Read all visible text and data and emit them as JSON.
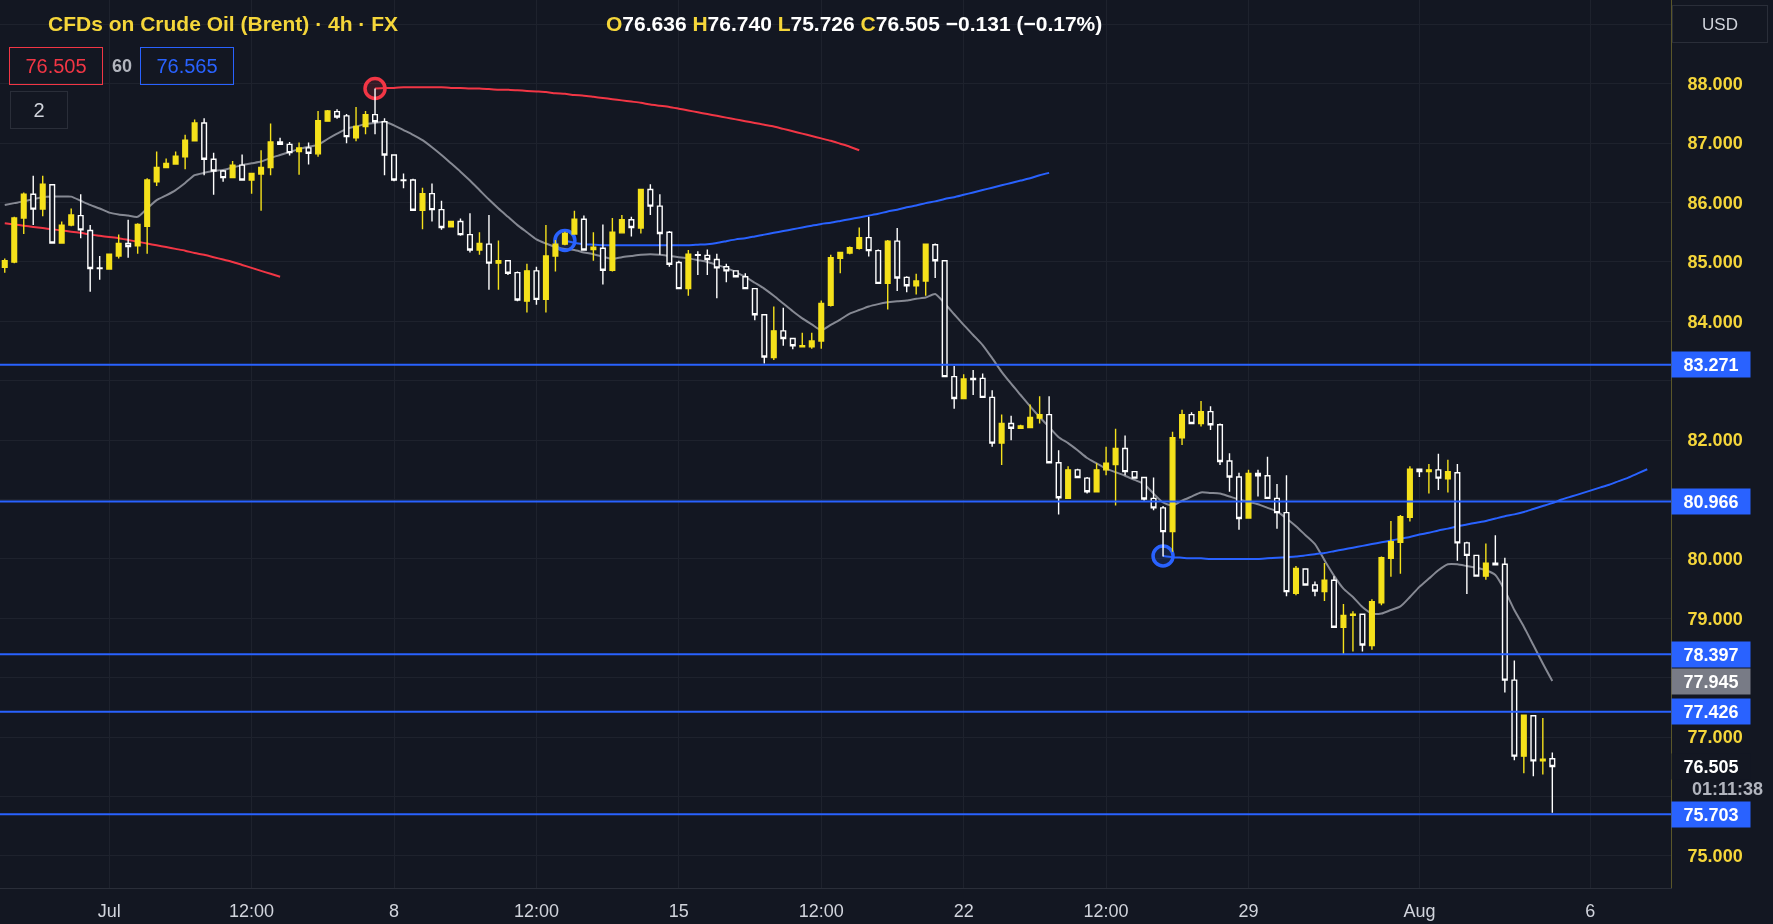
{
  "chart_data": {
    "type": "candlestick",
    "title": "CFDs on Crude Oil (Brent) · 4h · FX",
    "categories": [
      null,
      null,
      null,
      null,
      null,
      null,
      null,
      null,
      null,
      null,
      null,
      "Jul",
      null,
      null,
      null,
      null,
      null,
      null,
      null,
      null,
      null,
      null,
      null,
      null,
      null,
      null,
      "12:00",
      null,
      null,
      null,
      null,
      null,
      null,
      null,
      null,
      null,
      null,
      null,
      null,
      null,
      null,
      "8",
      null,
      null,
      null,
      null,
      null,
      null,
      null,
      null,
      null,
      null,
      null,
      null,
      null,
      null,
      "12:00",
      null,
      null,
      null,
      null,
      null,
      null,
      null,
      null,
      null,
      null,
      null,
      null,
      null,
      null,
      "15",
      null,
      null,
      null,
      null,
      null,
      null,
      null,
      null,
      null,
      null,
      null,
      null,
      null,
      null,
      "12:00",
      null,
      null,
      null,
      null,
      null,
      null,
      null,
      null,
      null,
      null,
      null,
      null,
      null,
      null,
      "22",
      null,
      null,
      null,
      null,
      null,
      null,
      null,
      null,
      null,
      null,
      null,
      null,
      null,
      null,
      "12:00",
      null,
      null,
      null,
      null,
      null,
      null,
      null,
      null,
      null,
      null,
      null,
      null,
      null,
      null,
      "29",
      null,
      null,
      null,
      null,
      null,
      null,
      null,
      null,
      null,
      null,
      null,
      null,
      null,
      null,
      null,
      null,
      null,
      "Aug",
      null,
      null,
      null,
      null,
      null,
      null,
      null,
      null,
      null,
      null,
      null,
      null,
      null,
      null,
      null,
      null,
      null,
      "6",
      null,
      null,
      null,
      null,
      null,
      null,
      null,
      null
    ],
    "ohlc": [
      [
        84.91,
        85.06,
        84.82,
        85.02
      ],
      [
        85.0,
        85.76,
        84.98,
        85.74
      ],
      [
        85.74,
        86.17,
        85.47,
        86.14
      ],
      [
        86.14,
        86.45,
        85.62,
        85.89
      ],
      [
        85.89,
        86.45,
        85.77,
        86.31
      ],
      [
        86.3,
        86.31,
        85.31,
        85.32
      ],
      [
        85.32,
        85.68,
        85.31,
        85.62
      ],
      [
        85.62,
        85.9,
        85.6,
        85.79
      ],
      [
        85.78,
        86.14,
        85.4,
        85.54
      ],
      [
        85.53,
        85.62,
        84.5,
        84.89
      ],
      [
        84.9,
        85.1,
        84.7,
        84.89
      ],
      [
        84.88,
        85.14,
        84.88,
        85.13
      ],
      [
        85.1,
        85.46,
        85.06,
        85.31
      ],
      [
        85.31,
        85.71,
        85.07,
        85.26
      ],
      [
        85.27,
        85.65,
        85.14,
        85.63
      ],
      [
        85.6,
        86.41,
        85.14,
        86.38
      ],
      [
        86.35,
        86.86,
        86.28,
        86.59
      ],
      [
        86.59,
        86.74,
        86.58,
        86.66
      ],
      [
        86.65,
        86.86,
        86.65,
        86.78
      ],
      [
        86.77,
        87.14,
        86.56,
        87.05
      ],
      [
        87.04,
        87.4,
        87.04,
        87.34
      ],
      [
        87.34,
        87.42,
        86.46,
        86.73
      ],
      [
        86.73,
        86.84,
        86.13,
        86.53
      ],
      [
        86.53,
        86.55,
        86.35,
        86.42
      ],
      [
        86.42,
        86.7,
        86.41,
        86.63
      ],
      [
        86.63,
        86.81,
        86.37,
        86.38
      ],
      [
        86.38,
        86.49,
        86.15,
        86.49
      ],
      [
        86.48,
        86.88,
        85.86,
        86.59
      ],
      [
        86.59,
        87.33,
        86.46,
        87.02
      ],
      [
        87.02,
        87.09,
        86.97,
        86.98
      ],
      [
        86.98,
        87.02,
        86.79,
        86.84
      ],
      [
        86.86,
        87.01,
        86.47,
        86.92
      ],
      [
        86.92,
        87.01,
        86.64,
        86.83
      ],
      [
        86.82,
        87.54,
        86.77,
        87.38
      ],
      [
        87.37,
        87.56,
        87.36,
        87.54
      ],
      [
        87.53,
        87.57,
        87.41,
        87.44
      ],
      [
        87.46,
        87.49,
        87.0,
        87.11
      ],
      [
        87.09,
        87.61,
        87.03,
        87.28
      ],
      [
        87.28,
        87.54,
        87.15,
        87.48
      ],
      [
        87.48,
        87.92,
        87.15,
        87.36
      ],
      [
        87.36,
        87.42,
        86.46,
        86.8
      ],
      [
        86.8,
        86.81,
        86.36,
        86.38
      ],
      [
        86.38,
        86.49,
        86.24,
        86.37
      ],
      [
        86.38,
        86.4,
        85.86,
        85.87
      ],
      [
        85.87,
        86.25,
        85.55,
        86.15
      ],
      [
        86.15,
        86.32,
        85.68,
        85.88
      ],
      [
        85.88,
        86.03,
        85.54,
        85.58
      ],
      [
        85.59,
        85.69,
        85.59,
        85.68
      ],
      [
        85.68,
        85.73,
        85.44,
        85.46
      ],
      [
        85.46,
        85.82,
        85.16,
        85.2
      ],
      [
        85.2,
        85.5,
        85.12,
        85.31
      ],
      [
        85.3,
        85.79,
        84.53,
        84.98
      ],
      [
        84.98,
        85.36,
        84.53,
        85.02
      ],
      [
        85.02,
        85.03,
        84.78,
        84.81
      ],
      [
        84.82,
        84.84,
        84.34,
        84.36
      ],
      [
        84.34,
        84.97,
        84.15,
        84.85
      ],
      [
        84.85,
        84.92,
        84.28,
        84.37
      ],
      [
        84.37,
        85.62,
        84.15,
        85.1
      ],
      [
        85.1,
        85.37,
        84.84,
        85.3
      ],
      [
        85.3,
        85.51,
        85.28,
        85.48
      ],
      [
        85.47,
        85.86,
        85.46,
        85.72
      ],
      [
        85.72,
        85.78,
        85.19,
        85.2
      ],
      [
        85.21,
        85.5,
        85.02,
        85.25
      ],
      [
        85.23,
        85.63,
        84.62,
        84.86
      ],
      [
        84.86,
        85.74,
        84.84,
        85.5
      ],
      [
        85.49,
        85.79,
        85.48,
        85.71
      ],
      [
        85.71,
        85.76,
        85.43,
        85.58
      ],
      [
        85.57,
        86.22,
        85.48,
        86.22
      ],
      [
        86.22,
        86.31,
        85.79,
        85.94
      ],
      [
        85.94,
        86.14,
        85.12,
        85.48
      ],
      [
        85.5,
        85.52,
        84.92,
        84.96
      ],
      [
        84.99,
        85.02,
        84.54,
        84.55
      ],
      [
        84.55,
        85.2,
        84.43,
        85.13
      ],
      [
        85.12,
        85.18,
        84.78,
        85.11
      ],
      [
        85.11,
        85.21,
        84.78,
        85.04
      ],
      [
        85.04,
        85.14,
        84.39,
        84.9
      ],
      [
        84.92,
        84.97,
        84.66,
        84.85
      ],
      [
        84.85,
        84.86,
        84.74,
        84.75
      ],
      [
        84.75,
        84.81,
        84.54,
        84.55
      ],
      [
        84.55,
        84.56,
        84.02,
        84.11
      ],
      [
        84.11,
        84.11,
        83.29,
        83.4
      ],
      [
        83.39,
        84.25,
        83.35,
        83.84
      ],
      [
        83.84,
        84.23,
        83.59,
        83.71
      ],
      [
        83.71,
        83.72,
        83.53,
        83.59
      ],
      [
        83.57,
        83.81,
        83.56,
        83.59
      ],
      [
        83.57,
        83.81,
        83.54,
        83.67
      ],
      [
        83.67,
        84.35,
        83.54,
        84.3
      ],
      [
        84.27,
        85.12,
        84.25,
        85.07
      ],
      [
        85.06,
        85.17,
        84.81,
        85.16
      ],
      [
        85.15,
        85.26,
        85.13,
        85.24
      ],
      [
        85.23,
        85.58,
        85.21,
        85.41
      ],
      [
        85.41,
        85.76,
        85.09,
        85.19
      ],
      [
        85.19,
        85.21,
        84.63,
        84.64
      ],
      [
        84.64,
        85.37,
        84.2,
        85.35
      ],
      [
        85.35,
        85.57,
        84.51,
        84.73
      ],
      [
        84.74,
        84.76,
        84.49,
        84.6
      ],
      [
        84.6,
        84.8,
        84.45,
        84.68
      ],
      [
        84.68,
        85.31,
        84.43,
        85.3
      ],
      [
        85.29,
        85.31,
        84.73,
        85.02
      ],
      [
        85.02,
        85.03,
        83.06,
        83.07
      ],
      [
        83.07,
        83.25,
        82.53,
        82.7
      ],
      [
        82.7,
        83.11,
        82.69,
        83.03
      ],
      [
        83.04,
        83.18,
        82.76,
        83.02
      ],
      [
        83.04,
        83.12,
        82.71,
        82.72
      ],
      [
        82.72,
        82.84,
        81.89,
        81.95
      ],
      [
        81.95,
        82.43,
        81.58,
        82.28
      ],
      [
        82.28,
        82.41,
        82.0,
        82.2
      ],
      [
        82.2,
        82.26,
        82.19,
        82.24
      ],
      [
        82.21,
        82.6,
        82.21,
        82.38
      ],
      [
        82.37,
        82.74,
        82.28,
        82.43
      ],
      [
        82.43,
        82.74,
        81.61,
        81.62
      ],
      [
        81.62,
        81.83,
        80.75,
        81.03
      ],
      [
        81.02,
        81.56,
        81.01,
        81.5
      ],
      [
        81.5,
        81.52,
        81.36,
        81.37
      ],
      [
        81.36,
        81.38,
        81.1,
        81.13
      ],
      [
        81.13,
        81.61,
        81.12,
        81.5
      ],
      [
        81.5,
        81.89,
        81.41,
        81.61
      ],
      [
        81.59,
        82.19,
        80.9,
        81.86
      ],
      [
        81.86,
        82.08,
        81.41,
        81.47
      ],
      [
        81.47,
        81.48,
        81.36,
        81.36
      ],
      [
        81.37,
        81.37,
        80.98,
        81.01
      ],
      [
        81.02,
        81.37,
        80.82,
        80.86
      ],
      [
        80.86,
        80.89,
        80.04,
        80.46
      ],
      [
        80.46,
        82.14,
        80.12,
        82.04
      ],
      [
        82.04,
        82.51,
        81.92,
        82.43
      ],
      [
        82.43,
        82.47,
        82.27,
        82.28
      ],
      [
        82.28,
        82.66,
        82.23,
        82.48
      ],
      [
        82.48,
        82.57,
        82.17,
        82.26
      ],
      [
        82.26,
        82.28,
        81.58,
        81.64
      ],
      [
        81.65,
        81.78,
        81.13,
        81.38
      ],
      [
        81.38,
        81.45,
        80.49,
        80.68
      ],
      [
        80.69,
        81.5,
        80.68,
        81.44
      ],
      [
        81.44,
        81.5,
        81.05,
        81.4
      ],
      [
        81.4,
        81.72,
        81.01,
        81.02
      ],
      [
        81.02,
        81.26,
        80.51,
        80.78
      ],
      [
        80.78,
        81.41,
        79.37,
        79.45
      ],
      [
        79.42,
        79.88,
        79.39,
        79.84
      ],
      [
        79.83,
        79.84,
        79.55,
        79.56
      ],
      [
        79.56,
        79.62,
        79.37,
        79.46
      ],
      [
        79.45,
        79.93,
        79.29,
        79.64
      ],
      [
        79.64,
        79.71,
        78.84,
        78.85
      ],
      [
        78.85,
        79.24,
        78.4,
        79.05
      ],
      [
        79.05,
        79.12,
        78.44,
        79.07
      ],
      [
        79.07,
        79.08,
        78.44,
        78.55
      ],
      [
        78.54,
        79.32,
        78.47,
        79.28
      ],
      [
        79.26,
        80.04,
        79.22,
        80.02
      ],
      [
        80.01,
        80.64,
        79.7,
        80.29
      ],
      [
        80.28,
        80.74,
        79.75,
        80.71
      ],
      [
        80.7,
        81.56,
        80.63,
        81.51
      ],
      [
        81.51,
        81.52,
        81.38,
        81.47
      ],
      [
        81.47,
        81.6,
        81.1,
        81.5
      ],
      [
        81.5,
        81.77,
        81.16,
        81.36
      ],
      [
        81.35,
        81.67,
        81.12,
        81.47
      ],
      [
        81.45,
        81.6,
        79.97,
        80.27
      ],
      [
        80.27,
        80.29,
        79.41,
        80.06
      ],
      [
        80.06,
        80.07,
        79.7,
        79.71
      ],
      [
        79.71,
        80.26,
        79.65,
        79.93
      ],
      [
        79.93,
        80.4,
        79.89,
        79.9
      ],
      [
        79.91,
        80.02,
        77.75,
        77.96
      ],
      [
        77.96,
        78.29,
        76.61,
        76.68
      ],
      [
        76.68,
        77.37,
        76.39,
        77.37
      ],
      [
        77.36,
        77.37,
        76.34,
        76.6
      ],
      [
        76.6,
        77.32,
        76.37,
        76.63
      ],
      [
        76.636,
        76.74,
        75.726,
        76.505
      ],
      null,
      null,
      null,
      null,
      null,
      null,
      null,
      null,
      null,
      null,
      null,
      null
    ],
    "colors": [
      "#f5e11b",
      "#f5e11b",
      "#f5e11b",
      "#ffffff",
      "#f5e11b",
      "#ffffff",
      "#f5e11b",
      "#f5e11b",
      "#ffffff",
      "#ffffff",
      "#ffffff",
      "#f5e11b",
      "#f5e11b",
      "#ffffff",
      "#f5e11b",
      "#f5e11b",
      "#f5e11b",
      "#f5e11b",
      "#f5e11b",
      "#f5e11b",
      "#f5e11b",
      "#ffffff",
      "#ffffff",
      "#ffffff",
      "#f5e11b",
      "#ffffff",
      "#f5e11b",
      "#f5e11b",
      "#f5e11b",
      "#ffffff",
      "#ffffff",
      "#f5e11b",
      "#ffffff",
      "#f5e11b",
      "#f5e11b",
      "#ffffff",
      "#ffffff",
      "#f5e11b",
      "#f5e11b",
      "#ffffff",
      "#ffffff",
      "#ffffff",
      "#ffffff",
      "#ffffff",
      "#f5e11b",
      "#ffffff",
      "#ffffff",
      "#f5e11b",
      "#ffffff",
      "#ffffff",
      "#f5e11b",
      "#ffffff",
      "#f5e11b",
      "#ffffff",
      "#ffffff",
      "#f5e11b",
      "#ffffff",
      "#f5e11b",
      "#f5e11b",
      "#f5e11b",
      "#f5e11b",
      "#ffffff",
      "#f5e11b",
      "#ffffff",
      "#f5e11b",
      "#f5e11b",
      "#ffffff",
      "#f5e11b",
      "#ffffff",
      "#ffffff",
      "#ffffff",
      "#ffffff",
      "#f5e11b",
      "#ffffff",
      "#ffffff",
      "#ffffff",
      "#ffffff",
      "#ffffff",
      "#ffffff",
      "#ffffff",
      "#ffffff",
      "#f5e11b",
      "#ffffff",
      "#ffffff",
      "#f5e11b",
      "#f5e11b",
      "#f5e11b",
      "#f5e11b",
      "#f5e11b",
      "#f5e11b",
      "#f5e11b",
      "#ffffff",
      "#ffffff",
      "#f5e11b",
      "#ffffff",
      "#ffffff",
      "#f5e11b",
      "#f5e11b",
      "#ffffff",
      "#ffffff",
      "#ffffff",
      "#f5e11b",
      "#ffffff",
      "#ffffff",
      "#ffffff",
      "#f5e11b",
      "#ffffff",
      "#f5e11b",
      "#f5e11b",
      "#f5e11b",
      "#ffffff",
      "#ffffff",
      "#f5e11b",
      "#ffffff",
      "#ffffff",
      "#f5e11b",
      "#f5e11b",
      "#f5e11b",
      "#ffffff",
      "#ffffff",
      "#ffffff",
      "#ffffff",
      "#ffffff",
      "#f5e11b",
      "#f5e11b",
      "#ffffff",
      "#f5e11b",
      "#ffffff",
      "#ffffff",
      "#ffffff",
      "#ffffff",
      "#f5e11b",
      "#ffffff",
      "#ffffff",
      "#ffffff",
      "#ffffff",
      "#f5e11b",
      "#ffffff",
      "#ffffff",
      "#f5e11b",
      "#ffffff",
      "#f5e11b",
      "#f5e11b",
      "#ffffff",
      "#f5e11b",
      "#f5e11b",
      "#f5e11b",
      "#f5e11b",
      "#f5e11b",
      "#ffffff",
      "#f5e11b",
      "#ffffff",
      "#f5e11b",
      "#ffffff",
      "#ffffff",
      "#ffffff",
      "#f5e11b",
      "#ffffff",
      "#ffffff",
      "#ffffff",
      "#f5e11b",
      "#ffffff",
      "#f5e11b",
      "#ffffff",
      null,
      null,
      null,
      null,
      null,
      null,
      null,
      null,
      null,
      null,
      null,
      null
    ],
    "value_labels": [
      null,
      null,
      null,
      null,
      null,
      null,
      null,
      null,
      null,
      null,
      null,
      null,
      null,
      null,
      null,
      null,
      null,
      null,
      null,
      null,
      null,
      null,
      null,
      null,
      null,
      null,
      null,
      null,
      null,
      null,
      null,
      null,
      null,
      null,
      null,
      null,
      null,
      null,
      null,
      null,
      null,
      null,
      null,
      null,
      null,
      null,
      null,
      null,
      null,
      null,
      null,
      null,
      null,
      null,
      null,
      null,
      null,
      null,
      null,
      null,
      null,
      null,
      null,
      null,
      null,
      null,
      null,
      null,
      null,
      null,
      null,
      null,
      null,
      null,
      null,
      null,
      null,
      null,
      null,
      null,
      null,
      null,
      null,
      null,
      null,
      null,
      null,
      null,
      null,
      null,
      null,
      null,
      null,
      null,
      null,
      null,
      null,
      null,
      null,
      null,
      null,
      null,
      null,
      null,
      null,
      null,
      null,
      null,
      null,
      null,
      null,
      null,
      null,
      null,
      null,
      null,
      null,
      null,
      null,
      null,
      null,
      null,
      null,
      null,
      null,
      null,
      null,
      null,
      null,
      null,
      null,
      null,
      null,
      null,
      null,
      null,
      null,
      null,
      null,
      null,
      null,
      null,
      null,
      null,
      null,
      null,
      null,
      null,
      null,
      null,
      null,
      null,
      null,
      null,
      null,
      null,
      null,
      null,
      null,
      null,
      null,
      null,
      null,
      "76.505",
      null,
      null,
      null,
      null,
      null,
      null,
      null,
      null,
      null,
      null,
      null,
      null
    ],
    "series": [
      {
        "type": "line",
        "color": "#868993",
        "values": [
          85.96,
          85.99,
          86.02,
          86.06,
          86.09,
          86.1,
          86.1,
          86.1,
          86.03,
          85.96,
          85.9,
          85.83,
          85.8,
          85.78,
          85.76,
          85.9,
          86.04,
          86.12,
          86.21,
          86.33,
          86.46,
          86.5,
          86.53,
          86.55,
          86.59,
          86.63,
          86.66,
          86.69,
          86.75,
          86.8,
          86.85,
          86.9,
          86.94,
          86.97,
          87.07,
          87.16,
          87.24,
          87.28,
          87.32,
          87.34,
          87.36,
          87.3,
          87.22,
          87.14,
          87.05,
          86.93,
          86.8,
          86.66,
          86.52,
          86.37,
          86.21,
          86.05,
          85.9,
          85.76,
          85.62,
          85.5,
          85.38,
          85.31,
          85.25,
          85.22,
          85.2,
          85.16,
          85.13,
          85.09,
          85.05,
          85.08,
          85.1,
          85.12,
          85.13,
          85.12,
          85.1,
          85.08,
          85.06,
          85.03,
          85.0,
          84.95,
          84.9,
          84.83,
          84.75,
          84.65,
          84.55,
          84.43,
          84.3,
          84.17,
          84.05,
          83.95,
          83.85,
          83.94,
          84.03,
          84.13,
          84.19,
          84.25,
          84.29,
          84.32,
          84.34,
          84.35,
          84.38,
          84.4,
          84.46,
          84.3,
          84.12,
          83.94,
          83.77,
          83.6,
          83.38,
          83.15,
          82.95,
          82.76,
          82.57,
          82.39,
          82.22,
          82.05,
          81.95,
          81.83,
          81.7,
          81.61,
          81.52,
          81.46,
          81.4,
          81.33,
          81.26,
          81.1,
          80.95,
          80.9,
          80.98,
          81.05,
          81.12,
          81.11,
          81.1,
          81.05,
          81.0,
          80.96,
          80.92,
          80.86,
          80.8,
          80.68,
          80.55,
          80.4,
          80.25,
          79.98,
          79.72,
          79.5,
          79.36,
          79.19,
          79.08,
          79.08,
          79.14,
          79.2,
          79.36,
          79.53,
          79.67,
          79.81,
          79.91,
          79.91,
          79.88,
          79.85,
          79.81,
          79.73,
          79.47,
          79.14,
          78.86,
          78.55,
          78.24,
          77.945,
          null,
          null,
          null,
          null,
          null,
          null,
          null,
          null,
          null,
          null,
          null,
          null
        ]
      },
      {
        "type": "line",
        "color": "#f23645",
        "values": [
          85.65,
          85.63,
          85.61,
          85.59,
          85.57,
          85.55,
          85.53,
          85.51,
          85.49,
          85.46,
          85.44,
          85.42,
          85.4,
          85.37,
          85.34,
          85.31,
          85.28,
          85.25,
          85.22,
          85.19,
          85.15,
          85.12,
          85.08,
          85.04,
          85.0,
          84.95,
          84.9,
          84.85,
          84.8,
          84.75,
          null,
          null,
          null,
          null,
          null,
          null,
          null,
          null,
          null,
          87.92,
          87.93,
          87.93,
          87.94,
          87.94,
          87.94,
          87.94,
          87.94,
          87.93,
          87.93,
          87.92,
          87.92,
          87.91,
          87.9,
          87.9,
          87.89,
          87.88,
          87.87,
          87.86,
          87.84,
          87.83,
          87.81,
          87.8,
          87.78,
          87.76,
          87.74,
          87.72,
          87.7,
          87.68,
          87.65,
          87.63,
          87.61,
          87.58,
          87.55,
          87.52,
          87.49,
          87.46,
          87.43,
          87.4,
          87.37,
          87.34,
          87.31,
          87.28,
          87.24,
          87.2,
          87.16,
          87.12,
          87.08,
          87.04,
          86.99,
          86.94,
          86.88,
          null,
          null,
          null,
          null,
          null,
          null,
          null,
          null,
          null,
          null,
          null,
          null,
          null,
          null,
          null,
          null,
          null,
          null,
          null,
          null,
          null,
          null,
          null,
          null,
          null,
          null,
          null,
          null,
          null,
          null,
          null,
          null,
          null,
          null,
          null,
          null,
          null,
          null,
          null,
          null,
          null,
          null,
          null,
          null,
          null,
          null,
          null,
          null,
          null,
          null,
          null,
          null,
          null,
          null,
          null,
          null,
          null,
          null,
          null,
          null,
          null,
          null,
          null,
          null,
          null,
          null,
          null,
          null,
          null,
          null,
          null,
          null,
          null,
          null,
          null,
          null,
          null,
          null,
          null,
          null,
          null,
          null,
          null,
          null,
          null
        ]
      },
      {
        "type": "line",
        "color": "#2962ff",
        "values": [
          null,
          null,
          null,
          null,
          null,
          null,
          null,
          null,
          null,
          null,
          null,
          null,
          null,
          null,
          null,
          null,
          null,
          null,
          null,
          null,
          null,
          null,
          null,
          null,
          null,
          null,
          null,
          null,
          null,
          null,
          null,
          null,
          null,
          null,
          null,
          null,
          null,
          null,
          null,
          null,
          null,
          null,
          null,
          null,
          null,
          null,
          null,
          null,
          null,
          null,
          null,
          null,
          null,
          null,
          null,
          null,
          null,
          null,
          null,
          85.36,
          85.32,
          85.3,
          85.29,
          85.28,
          85.28,
          85.28,
          85.28,
          85.28,
          85.28,
          85.28,
          85.28,
          85.28,
          85.28,
          85.29,
          85.3,
          85.32,
          85.35,
          85.38,
          85.4,
          85.43,
          85.46,
          85.49,
          85.52,
          85.55,
          85.58,
          85.61,
          85.64,
          85.66,
          85.69,
          85.72,
          85.75,
          85.78,
          85.81,
          85.85,
          85.88,
          85.92,
          85.95,
          85.99,
          86.02,
          86.06,
          86.09,
          86.13,
          86.17,
          86.21,
          86.25,
          86.29,
          86.33,
          86.37,
          86.41,
          86.46,
          86.5,
          null,
          null,
          null,
          null,
          null,
          null,
          null,
          null,
          null,
          null,
          null,
          80.05,
          80.03,
          80.02,
          80.01,
          80.01,
          80.0,
          80.0,
          80.0,
          80.0,
          80.0,
          80.0,
          80.01,
          80.02,
          80.03,
          80.04,
          80.06,
          80.08,
          80.1,
          80.13,
          80.16,
          80.19,
          80.22,
          80.25,
          80.28,
          80.31,
          80.34,
          80.37,
          80.41,
          80.44,
          80.48,
          80.51,
          80.55,
          80.58,
          80.61,
          80.64,
          80.68,
          80.72,
          80.75,
          80.79,
          80.84,
          80.89,
          80.94,
          81.0,
          81.05,
          81.1,
          81.15,
          81.2,
          81.25,
          81.31,
          81.37,
          81.44,
          81.51,
          null,
          null
        ]
      },
      {
        "type": "scatter",
        "marker": "circle",
        "color": "#f23645",
        "values": [
          null,
          null,
          null,
          null,
          null,
          null,
          null,
          null,
          null,
          null,
          null,
          null,
          null,
          null,
          null,
          null,
          null,
          null,
          null,
          null,
          null,
          null,
          null,
          null,
          null,
          null,
          null,
          null,
          null,
          null,
          null,
          null,
          null,
          null,
          null,
          null,
          null,
          null,
          null,
          87.92,
          null,
          null,
          null,
          null,
          null,
          null,
          null,
          null,
          null,
          null,
          null,
          null,
          null,
          null,
          null,
          null,
          null,
          null,
          null,
          null,
          null,
          null,
          null,
          null,
          null,
          null,
          null,
          null,
          null,
          null,
          null,
          null,
          null,
          null,
          null,
          null,
          null,
          null,
          null,
          null,
          null,
          null,
          null,
          null,
          null,
          null,
          null,
          null,
          null,
          null,
          null,
          null,
          null,
          null,
          null,
          null,
          null,
          null,
          null,
          null,
          null,
          null,
          null,
          null,
          null,
          null,
          null,
          null,
          null,
          null,
          null,
          null,
          null,
          null,
          null,
          null,
          null,
          null,
          null,
          null,
          null,
          null,
          null,
          null,
          null,
          null,
          null,
          null,
          null,
          null,
          null,
          null,
          null,
          null,
          null,
          null,
          null,
          null,
          null,
          null,
          null,
          null,
          null,
          null,
          null,
          null,
          null,
          null,
          null,
          null,
          null,
          null,
          null,
          null,
          null,
          null,
          null,
          null,
          null,
          null,
          null,
          null,
          null,
          null,
          null,
          null,
          null,
          null,
          null,
          null,
          null,
          null,
          null,
          null,
          null,
          null
        ]
      },
      {
        "type": "scatter",
        "marker": "circle",
        "color": "#2962ff",
        "values": [
          null,
          null,
          null,
          null,
          null,
          null,
          null,
          null,
          null,
          null,
          null,
          null,
          null,
          null,
          null,
          null,
          null,
          null,
          null,
          null,
          null,
          null,
          null,
          null,
          null,
          null,
          null,
          null,
          null,
          null,
          null,
          null,
          null,
          null,
          null,
          null,
          null,
          null,
          null,
          null,
          null,
          null,
          null,
          null,
          null,
          null,
          null,
          null,
          null,
          null,
          null,
          null,
          null,
          null,
          null,
          null,
          null,
          null,
          null,
          85.36,
          null,
          null,
          null,
          null,
          null,
          null,
          null,
          null,
          null,
          null,
          null,
          null,
          null,
          null,
          null,
          null,
          null,
          null,
          null,
          null,
          null,
          null,
          null,
          null,
          null,
          null,
          null,
          null,
          null,
          null,
          null,
          null,
          null,
          null,
          null,
          null,
          null,
          null,
          null,
          null,
          null,
          null,
          null,
          null,
          null,
          null,
          null,
          null,
          null,
          null,
          null,
          null,
          null,
          null,
          null,
          null,
          null,
          null,
          null,
          null,
          null,
          null,
          80.05,
          null,
          null,
          null,
          null,
          null,
          null,
          null,
          null,
          null,
          null,
          null,
          null,
          null,
          null,
          null,
          null,
          null,
          null,
          null,
          null,
          null,
          null,
          null,
          null,
          null,
          null,
          null,
          null,
          null,
          null,
          null,
          null,
          null,
          null,
          null,
          null,
          null,
          null,
          null,
          null,
          null,
          null,
          null,
          null,
          null,
          null,
          null,
          null,
          null,
          null,
          null,
          null,
          null
        ]
      }
    ],
    "ref_lines": [
      {
        "axis": "y",
        "value": 83.271,
        "label": "83.271",
        "color": "#2962ff"
      },
      {
        "axis": "y",
        "value": 80.966,
        "label": "80.966",
        "color": "#2962ff"
      },
      {
        "axis": "y",
        "value": 78.397,
        "label": "78.397",
        "color": "#2962ff"
      },
      {
        "axis": "y",
        "value": 77.426,
        "label": "77.426",
        "color": "#2962ff"
      },
      {
        "axis": "y",
        "value": 75.703,
        "label": "75.703",
        "color": "#2962ff"
      }
    ],
    "annotations": [
      "O76.636 H76.740 L75.726 C76.505 −0.131 (−0.17%)",
      "76.505",
      "60",
      "76.565",
      "2",
      "USD",
      "01:11:38",
      "77.945"
    ],
    "ylim": [
      74.46,
      89.41
    ],
    "yticks": [
      {
        "value": 75,
        "label": "75.000"
      },
      {
        "value": 76,
        "label": null
      },
      {
        "value": 77,
        "label": "77.000"
      },
      {
        "value": 78,
        "label": null
      },
      {
        "value": 79,
        "label": "79.000"
      },
      {
        "value": 80,
        "label": "80.000"
      },
      {
        "value": 81,
        "label": null
      },
      {
        "value": 82,
        "label": "82.000"
      },
      {
        "value": 83,
        "label": null
      },
      {
        "value": 84,
        "label": "84.000"
      },
      {
        "value": 85,
        "label": "85.000"
      },
      {
        "value": 86,
        "label": "86.000"
      },
      {
        "value": 87,
        "label": "87.000"
      },
      {
        "value": 88,
        "label": "88.000"
      },
      {
        "value": 89,
        "label": null
      }
    ],
    "grid": true
  }
}
